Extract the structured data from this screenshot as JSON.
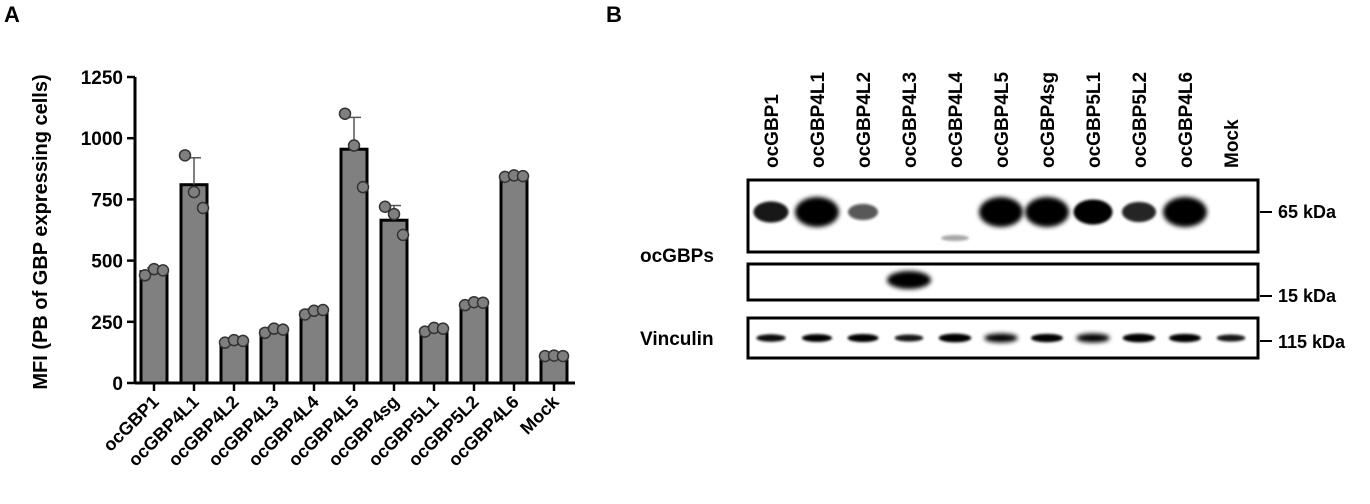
{
  "panel_a": {
    "letter": "A",
    "chart_data": {
      "type": "bar",
      "categories": [
        "ocGBP1",
        "ocGBP4L1",
        "ocGBP4L2",
        "ocGBP4L3",
        "ocGBP4L4",
        "ocGBP4L5",
        "ocGBP4sg",
        "ocGBP5L1",
        "ocGBP5L2",
        "ocGBP4L6",
        "Mock"
      ],
      "values": [
        455,
        810,
        170,
        215,
        290,
        955,
        665,
        218,
        325,
        845,
        110
      ],
      "errors": [
        15,
        110,
        10,
        12,
        12,
        130,
        60,
        10,
        10,
        5,
        5
      ],
      "points": [
        [
          440,
          465,
          460
        ],
        [
          930,
          780,
          715
        ],
        [
          165,
          175,
          172
        ],
        [
          205,
          222,
          218
        ],
        [
          280,
          295,
          298
        ],
        [
          1100,
          970,
          800
        ],
        [
          720,
          690,
          605
        ],
        [
          210,
          225,
          222
        ],
        [
          318,
          330,
          328
        ],
        [
          842,
          848,
          845
        ],
        [
          110,
          112,
          110
        ]
      ],
      "title": "",
      "xlabel": "",
      "ylabel": "MFI (PB of GBP expressing cells)",
      "ylim": [
        0,
        1250
      ],
      "yticks": [
        0,
        250,
        500,
        750,
        1000,
        1250
      ],
      "grid": false,
      "colors": {
        "bar": "#808080",
        "point": "#7f7f7f",
        "edge": "#000000"
      }
    }
  },
  "panel_b": {
    "letter": "B",
    "lanes": [
      "ocGBP1",
      "ocGBP4L1",
      "ocGBP4L2",
      "ocGBP4L3",
      "ocGBP4L4",
      "ocGBP4L5",
      "ocGBP4sg",
      "ocGBP5L1",
      "ocGBP5L2",
      "ocGBP4L6",
      "Mock"
    ],
    "row_labels": {
      "ocgbps": "ocGBPs",
      "vinculin": "Vinculin"
    },
    "markers": {
      "top": "65 kDa",
      "mid": "15 kDa",
      "bottom": "115 kDa"
    },
    "band_intensity": {
      "top": [
        0.55,
        1.0,
        0.3,
        0,
        0,
        1.0,
        1.0,
        0.75,
        0.5,
        1.0,
        0
      ],
      "mid": [
        0,
        0,
        0,
        1.0,
        0,
        0,
        0,
        0,
        0,
        0,
        0
      ],
      "bottom": [
        0.6,
        0.65,
        0.7,
        0.55,
        0.8,
        0.85,
        0.75,
        0.85,
        0.8,
        0.75,
        0.55
      ]
    }
  }
}
